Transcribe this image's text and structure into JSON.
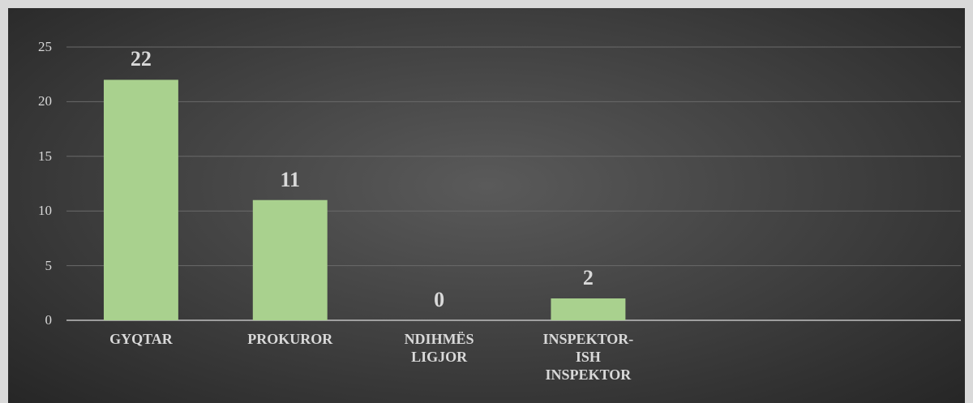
{
  "chart_data": {
    "type": "bar",
    "categories": [
      "GYQTAR",
      "PROKUROR",
      "NDIHMËS LIGJOR",
      "INSPEKTOR-ISH INSPEKTOR",
      null,
      null
    ],
    "values": [
      22,
      11,
      0,
      2,
      null,
      null
    ],
    "color": "#a9d18e",
    "ylim": [
      0,
      25
    ],
    "yticks": [
      0,
      5,
      10,
      15,
      20,
      25
    ],
    "grid": true
  }
}
